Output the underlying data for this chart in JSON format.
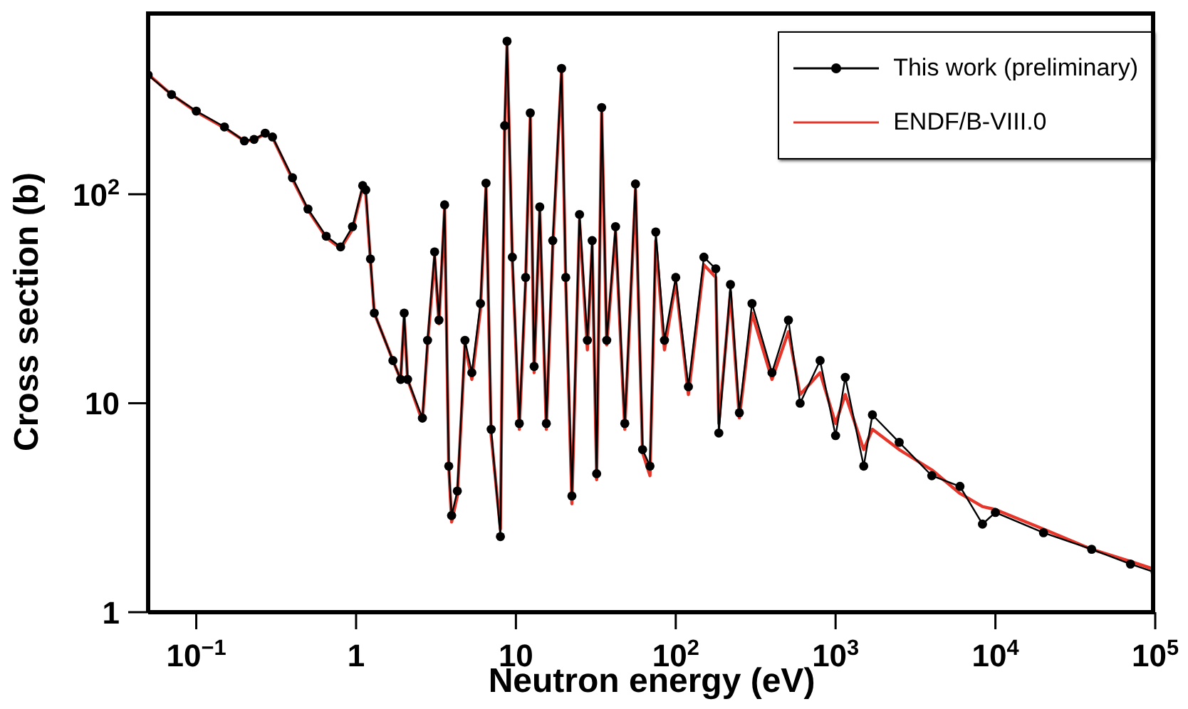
{
  "chart_data": {
    "type": "line",
    "xlabel": "Neutron energy (eV)",
    "ylabel": "Cross section (b)",
    "log": "xy",
    "legend": "top right",
    "xlim": [
      0.05,
      100000
    ],
    "ylim": [
      1,
      750
    ],
    "xticks": [
      {
        "value": 0.1,
        "label": "10$^{−1}$"
      },
      1,
      10,
      {
        "value": 100,
        "label": "10$^{2}$"
      },
      {
        "value": 1000,
        "label": "10$^{3}$"
      },
      {
        "value": 10000,
        "label": "10$^{4}$"
      },
      {
        "value": 100000,
        "label": "10$^{5}$"
      }
    ],
    "yticks": [
      1,
      10,
      {
        "value": 100,
        "label": "10$^{2}$"
      }
    ],
    "x": [
      0.05,
      0.07,
      0.1,
      0.15,
      0.2,
      0.23,
      0.27,
      0.3,
      0.4,
      0.5,
      0.65,
      0.8,
      0.95,
      1.1,
      1.15,
      1.23,
      1.3,
      1.7,
      1.9,
      2.0,
      2.1,
      2.6,
      2.8,
      3.1,
      3.3,
      3.58,
      3.8,
      3.96,
      4.3,
      4.8,
      5.3,
      6.0,
      6.5,
      7.0,
      8.0,
      8.5,
      8.8,
      9.5,
      10.5,
      11.5,
      12.3,
      13,
      14.1,
      15.5,
      17,
      19.3,
      20.5,
      22.4,
      25,
      28,
      30,
      32,
      34.4,
      37,
      42,
      48,
      56,
      62,
      69,
      75,
      85,
      100,
      120,
      150,
      178,
      186,
      220,
      250,
      300,
      400,
      507,
      600,
      800,
      1000,
      1150,
      1500,
      1700,
      2500,
      4000,
      6000,
      8300,
      10000,
      20000,
      40000,
      70000,
      100000
    ],
    "series": [
      {
        "name": "This work (preliminary)",
        "color": "#000000",
        "marker": "circle",
        "values": [
          372,
          300,
          250,
          210,
          180,
          183,
          196,
          188,
          120,
          85,
          63,
          56,
          70,
          110,
          105,
          49,
          27,
          16,
          13,
          27,
          13,
          8.5,
          20,
          53,
          25,
          89,
          5,
          2.9,
          3.8,
          20,
          14,
          30,
          113,
          7.5,
          2.3,
          213,
          540,
          50,
          8,
          40,
          245,
          15,
          87,
          8,
          60,
          400,
          40,
          3.6,
          80,
          20,
          60,
          4.6,
          260,
          20,
          70,
          8,
          112,
          6,
          5,
          66,
          20,
          40,
          12,
          50,
          44,
          7.2,
          37,
          9,
          30,
          14,
          25,
          10,
          16,
          7,
          13.3,
          5,
          8.8,
          6.5,
          4.5,
          4,
          2.64,
          3,
          2.4,
          2,
          1.7,
          1.55
        ]
      },
      {
        "name": "ENDF/B-VIII.0",
        "color": "#e8352a",
        "marker": "none",
        "values": [
          375,
          300,
          248,
          208,
          180,
          182,
          195,
          187,
          118,
          84,
          62,
          55,
          68,
          108,
          100,
          48,
          27,
          16,
          13,
          26,
          13,
          8.2,
          19,
          50,
          24,
          85,
          5,
          2.7,
          3.6,
          19,
          13,
          28,
          108,
          7,
          2.5,
          200,
          520,
          48,
          7.5,
          38,
          235,
          14,
          84,
          7.5,
          55,
          390,
          38,
          3.3,
          75,
          18,
          57,
          4.3,
          250,
          19,
          66,
          7.5,
          105,
          5.8,
          4.5,
          60,
          18,
          38,
          11,
          46,
          40,
          8,
          34,
          8.5,
          27,
          13,
          22,
          11,
          14,
          8,
          11,
          6,
          7.5,
          6,
          4.8,
          3.7,
          3.2,
          3.1,
          2.5,
          2,
          1.75,
          1.6
        ]
      }
    ]
  }
}
